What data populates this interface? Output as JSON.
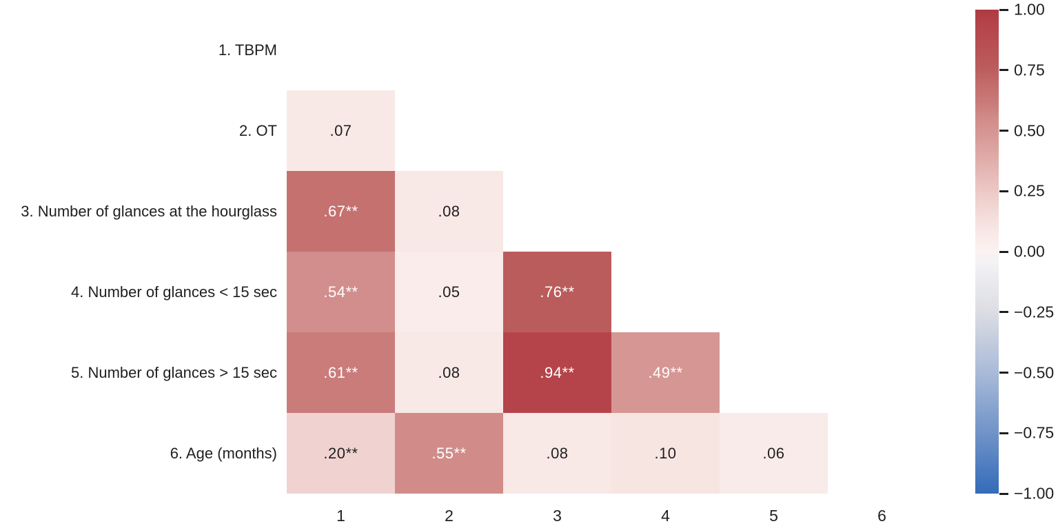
{
  "figure": {
    "kind": "lower-triangle correlation heatmap",
    "background_color": "#ffffff",
    "text_color": "#1f1f1f"
  },
  "chart_data": {
    "type": "heatmap",
    "variables": [
      "1. TBPM",
      "2. OT",
      "3. Number of glances at the hourglass",
      "4. Number of glances < 15 sec",
      "5. Number of glances > 15 sec",
      "6. Age (months)"
    ],
    "x_tick_labels": [
      "1",
      "2",
      "3",
      "4",
      "5",
      "6"
    ],
    "mask": "diagonal and upper triangle hidden",
    "grid": false,
    "cells": [
      {
        "row": 2,
        "col": 1,
        "value": 0.07,
        "label": ".07"
      },
      {
        "row": 3,
        "col": 1,
        "value": 0.67,
        "label": ".67**"
      },
      {
        "row": 3,
        "col": 2,
        "value": 0.08,
        "label": ".08"
      },
      {
        "row": 4,
        "col": 1,
        "value": 0.54,
        "label": ".54**"
      },
      {
        "row": 4,
        "col": 2,
        "value": 0.05,
        "label": ".05"
      },
      {
        "row": 4,
        "col": 3,
        "value": 0.76,
        "label": ".76**"
      },
      {
        "row": 5,
        "col": 1,
        "value": 0.61,
        "label": ".61**"
      },
      {
        "row": 5,
        "col": 2,
        "value": 0.08,
        "label": ".08"
      },
      {
        "row": 5,
        "col": 3,
        "value": 0.94,
        "label": ".94**"
      },
      {
        "row": 5,
        "col": 4,
        "value": 0.49,
        "label": ".49**"
      },
      {
        "row": 6,
        "col": 1,
        "value": 0.2,
        "label": ".20**"
      },
      {
        "row": 6,
        "col": 2,
        "value": 0.55,
        "label": ".55**"
      },
      {
        "row": 6,
        "col": 3,
        "value": 0.08,
        "label": ".08"
      },
      {
        "row": 6,
        "col": 4,
        "value": 0.1,
        "label": ".10"
      },
      {
        "row": 6,
        "col": 5,
        "value": 0.06,
        "label": ".06"
      }
    ],
    "colorbar": {
      "min": -1.0,
      "max": 1.0,
      "tick_values": [
        1.0,
        0.75,
        0.5,
        0.25,
        0.0,
        -0.25,
        -0.5,
        -0.75,
        -1.0
      ],
      "tick_labels": [
        "1.00",
        "0.75",
        "0.50",
        "0.25",
        "0.00",
        "−0.25",
        "−0.50",
        "−0.75",
        "−1.00"
      ],
      "position": "right",
      "colormap_stops": [
        {
          "value": 1.0,
          "color": "#ae3a40"
        },
        {
          "value": 0.94,
          "color": "#b5444a"
        },
        {
          "value": 0.76,
          "color": "#bb5c5c"
        },
        {
          "value": 0.67,
          "color": "#c4716f"
        },
        {
          "value": 0.61,
          "color": "#ca7c7a"
        },
        {
          "value": 0.55,
          "color": "#d18c8a"
        },
        {
          "value": 0.49,
          "color": "#d69693"
        },
        {
          "value": 0.2,
          "color": "#f0d3d0"
        },
        {
          "value": 0.08,
          "color": "#f8e8e6"
        },
        {
          "value": 0.0,
          "color": "#fbf3f1"
        },
        {
          "value": -0.05,
          "color": "#f2f2f4"
        },
        {
          "value": -0.25,
          "color": "#dcdde3"
        },
        {
          "value": -0.5,
          "color": "#a9bad8"
        },
        {
          "value": -0.75,
          "color": "#7093c8"
        },
        {
          "value": -1.0,
          "color": "#346bb8"
        }
      ],
      "value_text_colors": {
        "light_cells": "#1f1f1f",
        "dark_cells": "#ffffff"
      }
    }
  }
}
